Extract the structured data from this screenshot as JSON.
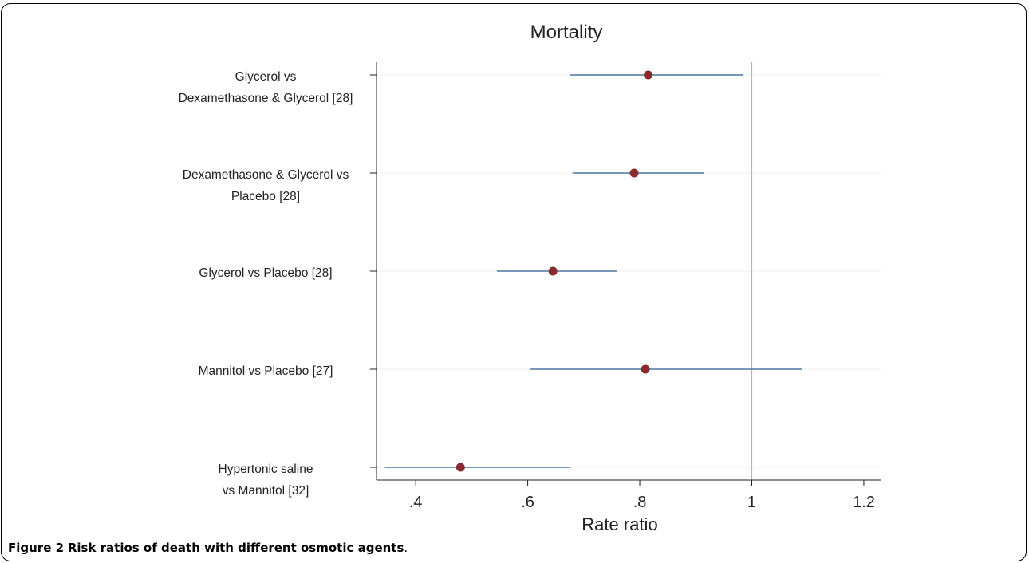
{
  "figure": {
    "caption_label": "Figure 2",
    "caption_text": "Risk ratios of death with different osmotic agents",
    "caption_end": "."
  },
  "colors": {
    "point": "#8b2a2e",
    "ci_line": "#4a76a0",
    "reference_line": "#e0a0a8",
    "grid": "#eeeeee",
    "axis": "#222222"
  },
  "chart_data": {
    "type": "forest",
    "title": "Mortality",
    "xlabel": "Rate ratio",
    "ylabel": "",
    "xlim": [
      0.33,
      1.23
    ],
    "xticks": [
      0.4,
      0.6,
      0.8,
      1,
      1.2
    ],
    "xtick_labels": [
      ".4",
      ".6",
      ".8",
      "1",
      "1.2"
    ],
    "reference_value": 1,
    "grid": true,
    "studies": [
      {
        "label_lines": [
          "Glycerol vs",
          "Dexamethasone & Glycerol [28]"
        ],
        "estimate": 0.815,
        "ci_low": 0.675,
        "ci_high": 0.985
      },
      {
        "label_lines": [
          "Dexamethasone & Glycerol vs",
          "Placebo [28]"
        ],
        "estimate": 0.79,
        "ci_low": 0.68,
        "ci_high": 0.915
      },
      {
        "label_lines": [
          "Glycerol vs Placebo [28]"
        ],
        "estimate": 0.645,
        "ci_low": 0.545,
        "ci_high": 0.76
      },
      {
        "label_lines": [
          "Mannitol vs Placebo [27]"
        ],
        "estimate": 0.81,
        "ci_low": 0.605,
        "ci_high": 1.09
      },
      {
        "label_lines": [
          "Hypertonic saline",
          "vs Mannitol [32]"
        ],
        "estimate": 0.48,
        "ci_low": 0.345,
        "ci_high": 0.675
      }
    ]
  }
}
